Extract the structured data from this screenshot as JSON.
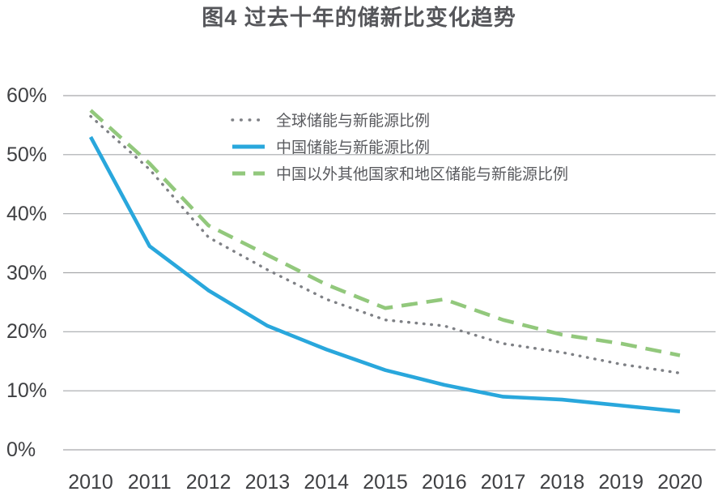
{
  "title": "图4 过去十年的储新比变化趋势",
  "chart_data": {
    "type": "line",
    "title": "图4 过去十年的储新比变化趋势",
    "x": [
      2010,
      2011,
      2012,
      2013,
      2014,
      2015,
      2016,
      2017,
      2018,
      2019,
      2020
    ],
    "xtick_labels": [
      "2010",
      "2011",
      "2012",
      "2013",
      "2014",
      "2015",
      "2016",
      "2017",
      "2018",
      "2019",
      "2020"
    ],
    "series": [
      {
        "name": "全球储能与新能源比例",
        "style": "dotted",
        "color": "#7e8085",
        "values": [
          56.5,
          47.5,
          36,
          30.5,
          25.5,
          22,
          21,
          18,
          16.5,
          14.5,
          13
        ]
      },
      {
        "name": "中国储能与新能源比例",
        "style": "solid",
        "color": "#29a7dc",
        "values": [
          53,
          34.5,
          27,
          21,
          17,
          13.5,
          11,
          9,
          8.5,
          7.5,
          6.5
        ]
      },
      {
        "name": "中国以外其他国家和地区储能与新能源比例",
        "style": "dashed",
        "color": "#92c87c",
        "values": [
          57.5,
          48.5,
          38,
          33,
          28,
          24,
          25.5,
          22,
          19.5,
          18,
          16
        ]
      }
    ],
    "ylim": [
      0,
      60
    ],
    "ytick_values": [
      0,
      10,
      20,
      30,
      40,
      50,
      60
    ],
    "ytick_labels": [
      "0%",
      "10%",
      "20%",
      "30%",
      "40%",
      "50%",
      "60%"
    ],
    "grid": "horizontal",
    "legend_position": "inside-top-left",
    "gridline_color": "#a6a8ab",
    "unit": "percent"
  }
}
